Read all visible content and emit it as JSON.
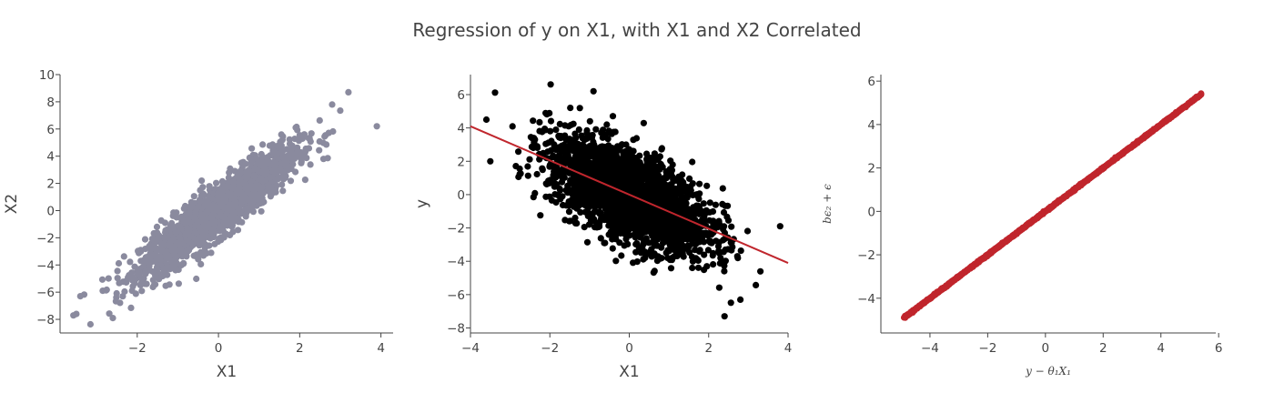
{
  "figure_title": "Regression of y on X1, with X1 and X2 Correlated",
  "chart_data": [
    {
      "type": "scatter",
      "xlabel": "X1",
      "ylabel": "X2",
      "xlim": [
        -3.9,
        4.3
      ],
      "ylim": [
        -9.0,
        10.0
      ],
      "xticks": [
        -2,
        0,
        2,
        4
      ],
      "yticks": [
        -8,
        -6,
        -4,
        -2,
        0,
        2,
        4,
        6,
        8,
        10
      ],
      "grid": false,
      "color": "#8a8a9e",
      "series": [
        {
          "points_summary": {
            "n": 1800,
            "x_mean": 0,
            "x_sd": 0.95,
            "slope": 2.2,
            "resid_sd": 0.95
          },
          "extreme_points": [
            [
              -3.5,
              -7.6
            ],
            [
              -3.4,
              -6.3
            ],
            [
              -2.6,
              -7.9
            ],
            [
              3.2,
              8.7
            ],
            [
              3.9,
              6.2
            ],
            [
              2.8,
              7.8
            ]
          ]
        }
      ]
    },
    {
      "type": "scatter",
      "xlabel": "X1",
      "ylabel": "y",
      "xlim": [
        -4.0,
        4.0
      ],
      "ylim": [
        -8.3,
        7.2
      ],
      "xticks": [
        -4,
        -2,
        0,
        2,
        4
      ],
      "yticks": [
        -8,
        -6,
        -4,
        -2,
        0,
        2,
        4,
        6
      ],
      "grid": false,
      "color": "#000000",
      "series": [
        {
          "points_summary": {
            "n": 2600,
            "x_mean": 0,
            "x_sd": 1.0,
            "slope": -1.0,
            "resid_sd": 1.3
          },
          "extreme_points": [
            [
              -3.6,
              4.5
            ],
            [
              -3.5,
              2.0
            ],
            [
              -0.9,
              6.2
            ],
            [
              2.4,
              -7.3
            ],
            [
              3.8,
              -1.9
            ],
            [
              2.8,
              -6.3
            ]
          ]
        }
      ],
      "fit_line": {
        "x": [
          -4,
          4
        ],
        "y": [
          4.1,
          -4.1
        ],
        "color": "#c0262d"
      }
    },
    {
      "type": "scatter",
      "xlabel": "y − θ₁X₁",
      "ylabel": "bϵ₂ + ϵ",
      "xlim": [
        -5.7,
        5.9
      ],
      "ylim": [
        -5.6,
        6.3
      ],
      "xticks": [
        -4,
        -2,
        0,
        2,
        4,
        6
      ],
      "yticks": [
        -4,
        -2,
        0,
        2,
        4,
        6
      ],
      "grid": false,
      "color": "#c0262d",
      "series": [
        {
          "line_y_equals_x": true,
          "x_range": [
            -4.9,
            5.4
          ],
          "n": 1400
        }
      ]
    }
  ]
}
